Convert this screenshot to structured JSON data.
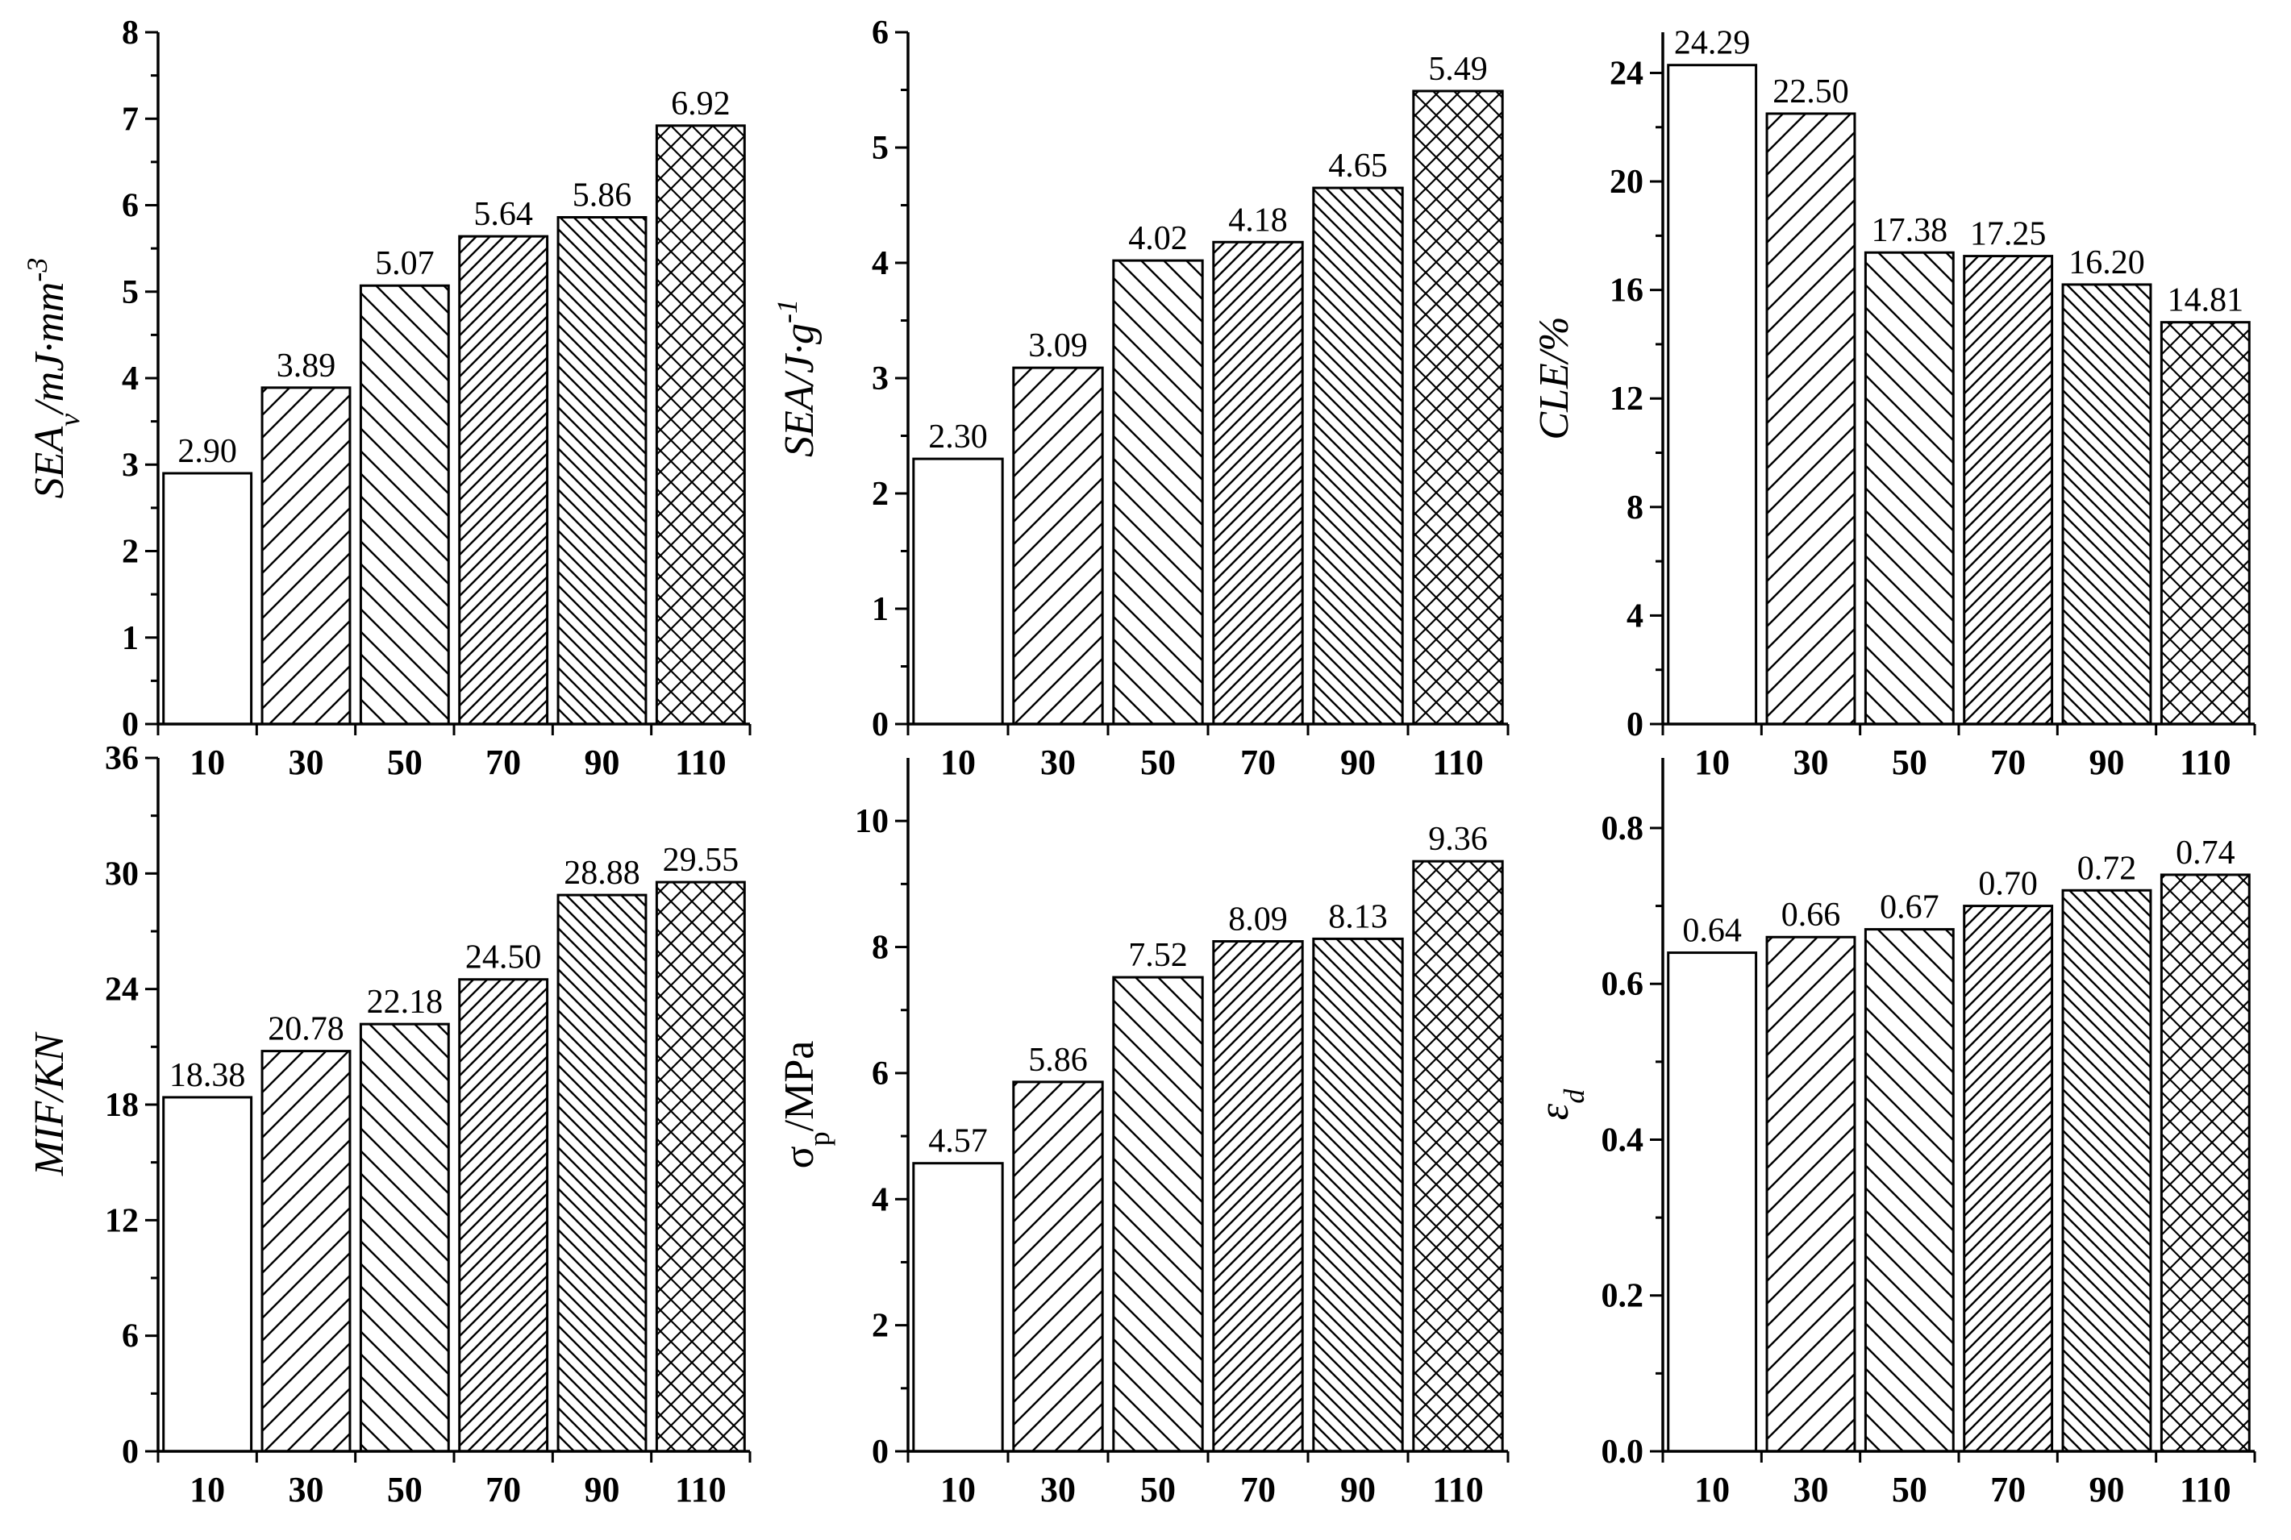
{
  "chart_data": [
    {
      "type": "bar",
      "title": "",
      "xlabel": "",
      "ylabel": "SEAv/mJ·mm-3",
      "ylabel_parts": [
        {
          "text": "SEA",
          "style": "italic"
        },
        {
          "text": "v",
          "style": "italic",
          "shift": "sub"
        },
        {
          "text": "/mJ·mm",
          "style": "italic"
        },
        {
          "text": "-3",
          "style": "italic",
          "shift": "super"
        }
      ],
      "categories": [
        "10",
        "30",
        "50",
        "70",
        "90",
        "110"
      ],
      "values": [
        2.9,
        3.89,
        5.07,
        5.64,
        5.86,
        6.92
      ],
      "labels": [
        "2.90",
        "3.89",
        "5.07",
        "5.64",
        "5.86",
        "6.92"
      ],
      "ylim": [
        0,
        8
      ],
      "yticks": [
        0,
        1,
        2,
        3,
        4,
        5,
        6,
        7,
        8
      ],
      "ytick_labels": [
        "0",
        "1",
        "2",
        "3",
        "4",
        "5",
        "6",
        "7",
        "8"
      ],
      "patterns": [
        "none",
        "diag-up",
        "diag-down",
        "diag-up-dense",
        "diag-down-dense",
        "cross"
      ],
      "grid": false
    },
    {
      "type": "bar",
      "title": "",
      "xlabel": "",
      "ylabel": "SEA/J·g-1",
      "ylabel_parts": [
        {
          "text": "SEA/J·g",
          "style": "italic"
        },
        {
          "text": "-1",
          "style": "italic",
          "shift": "super"
        }
      ],
      "categories": [
        "10",
        "30",
        "50",
        "70",
        "90",
        "110"
      ],
      "values": [
        2.3,
        3.09,
        4.02,
        4.18,
        4.65,
        5.49
      ],
      "labels": [
        "2.30",
        "3.09",
        "4.02",
        "4.18",
        "4.65",
        "5.49"
      ],
      "ylim": [
        0,
        6
      ],
      "yticks": [
        0,
        1,
        2,
        3,
        4,
        5,
        6
      ],
      "ytick_labels": [
        "0",
        "1",
        "2",
        "3",
        "4",
        "5",
        "6"
      ],
      "patterns": [
        "none",
        "diag-up",
        "diag-down",
        "diag-up-dense",
        "diag-down-dense",
        "cross"
      ],
      "grid": false
    },
    {
      "type": "bar",
      "title": "",
      "xlabel": "",
      "ylabel": "CLE/%",
      "ylabel_parts": [
        {
          "text": "CLE/%",
          "style": "italic"
        }
      ],
      "categories": [
        "10",
        "30",
        "50",
        "70",
        "90",
        "110"
      ],
      "values": [
        24.29,
        22.5,
        17.38,
        17.25,
        16.2,
        14.81
      ],
      "labels": [
        "24.29",
        "22.50",
        "17.38",
        "17.25",
        "16.20",
        "14.81"
      ],
      "ylim": [
        0,
        25.5
      ],
      "yticks": [
        0,
        4,
        8,
        12,
        16,
        20,
        24
      ],
      "ytick_labels": [
        "0",
        "4",
        "8",
        "12",
        "16",
        "20",
        "24"
      ],
      "patterns": [
        "none",
        "diag-up",
        "diag-down",
        "diag-up-dense",
        "diag-down-dense",
        "cross"
      ],
      "grid": false
    },
    {
      "type": "bar",
      "title": "",
      "xlabel": "",
      "ylabel": "MIF/KN",
      "ylabel_parts": [
        {
          "text": "MIF/KN",
          "style": "italic"
        }
      ],
      "categories": [
        "10",
        "30",
        "50",
        "70",
        "90",
        "110"
      ],
      "values": [
        18.38,
        20.78,
        22.18,
        24.5,
        28.88,
        29.55
      ],
      "labels": [
        "18.38",
        "20.78",
        "22.18",
        "24.50",
        "28.88",
        "29.55"
      ],
      "ylim": [
        0,
        36
      ],
      "yticks": [
        0,
        6,
        12,
        18,
        24,
        30,
        36
      ],
      "ytick_labels": [
        "0",
        "6",
        "12",
        "18",
        "24",
        "30",
        "36"
      ],
      "patterns": [
        "none",
        "diag-up",
        "diag-down",
        "diag-up-dense",
        "diag-down-dense",
        "cross"
      ],
      "grid": false
    },
    {
      "type": "bar",
      "title": "",
      "xlabel": "",
      "ylabel": "σp/MPa",
      "ylabel_parts": [
        {
          "text": "σ",
          "style": "normal"
        },
        {
          "text": "p",
          "style": "normal",
          "shift": "sub"
        },
        {
          "text": "/MPa",
          "style": "normal"
        }
      ],
      "categories": [
        "10",
        "30",
        "50",
        "70",
        "90",
        "110"
      ],
      "values": [
        4.57,
        5.86,
        7.52,
        8.09,
        8.13,
        9.36
      ],
      "labels": [
        "4.57",
        "5.86",
        "7.52",
        "8.09",
        "8.13",
        "9.36"
      ],
      "ylim": [
        0,
        11
      ],
      "yticks": [
        0,
        2,
        4,
        6,
        8,
        10
      ],
      "ytick_labels": [
        "0",
        "2",
        "4",
        "6",
        "8",
        "10"
      ],
      "patterns": [
        "none",
        "diag-up",
        "diag-down",
        "diag-up-dense",
        "diag-down-dense",
        "cross"
      ],
      "grid": false
    },
    {
      "type": "bar",
      "title": "",
      "xlabel": "",
      "ylabel": "εd",
      "ylabel_parts": [
        {
          "text": "ε",
          "style": "italic"
        },
        {
          "text": "d",
          "style": "italic",
          "shift": "sub"
        }
      ],
      "categories": [
        "10",
        "30",
        "50",
        "70",
        "90",
        "110"
      ],
      "values": [
        0.64,
        0.66,
        0.67,
        0.7,
        0.72,
        0.74
      ],
      "labels": [
        "0.64",
        "0.66",
        "0.67",
        "0.70",
        "0.72",
        "0.74"
      ],
      "ylim": [
        0,
        0.89
      ],
      "yticks": [
        0.0,
        0.2,
        0.4,
        0.6,
        0.8
      ],
      "ytick_labels": [
        "0.0",
        "0.2",
        "0.4",
        "0.6",
        "0.8"
      ],
      "patterns": [
        "none",
        "diag-up",
        "diag-down",
        "diag-up-dense",
        "diag-down-dense",
        "cross"
      ],
      "grid": false
    }
  ]
}
